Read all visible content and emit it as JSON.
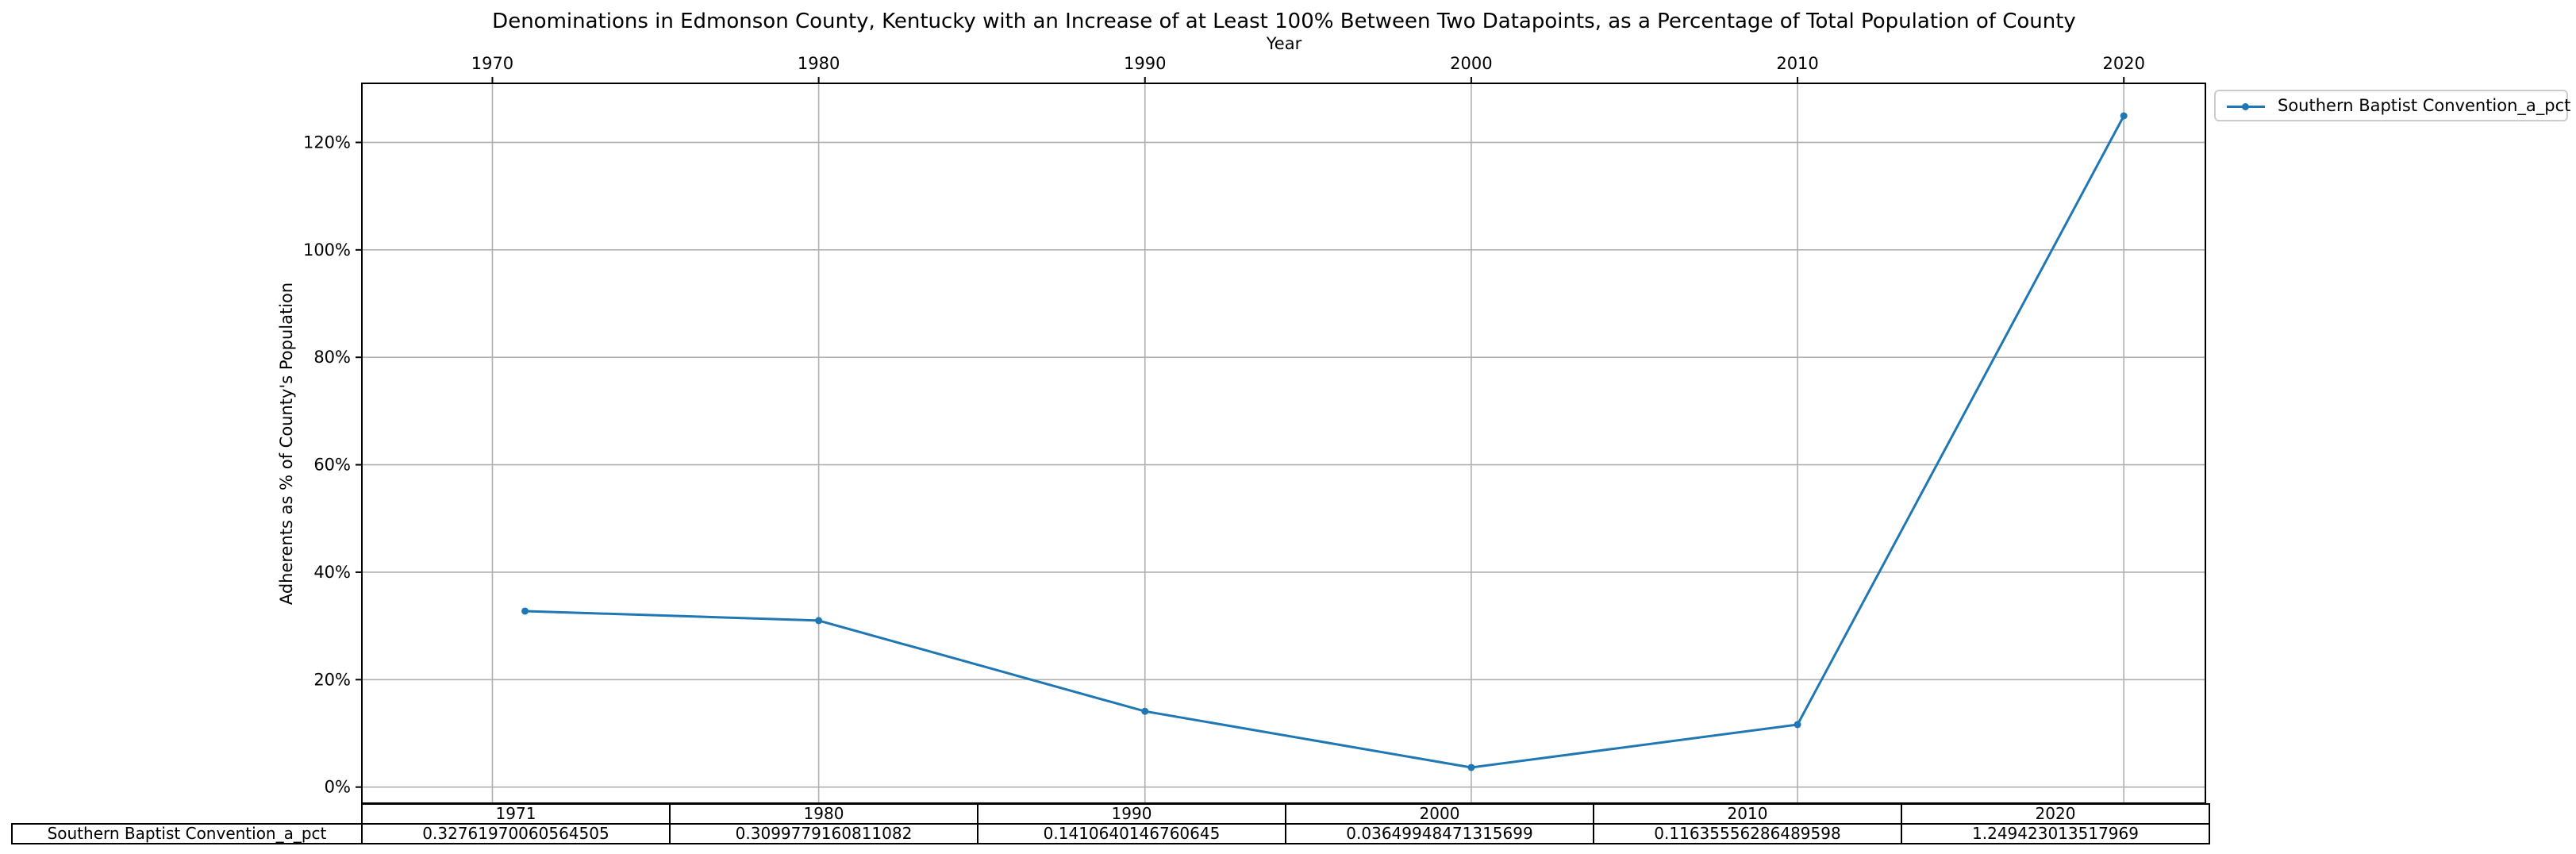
{
  "chart_data": {
    "type": "line",
    "title": "Denominations in Edmonson County, Kentucky with an Increase of at Least 100% Between Two Datapoints, as a Percentage of Total Population of County",
    "xlabel": "Year",
    "ylabel": "Adherents as % of County's Population",
    "x_ticks": [
      1970,
      1980,
      1990,
      2000,
      2010,
      2020
    ],
    "y_ticks": [
      0,
      20,
      40,
      60,
      80,
      100,
      120
    ],
    "y_tick_suffix": "%",
    "xlim": [
      1966,
      2022.5
    ],
    "ylim": [
      -3,
      131
    ],
    "x": [
      1971,
      1980,
      1990,
      2000,
      2010,
      2020
    ],
    "series": [
      {
        "name": "Southern Baptist Convention_a_pct",
        "values": [
          32.76197006056451,
          30.99779160811082,
          14.10640146760645,
          3.649948471315699,
          11.635556286489598,
          124.9423013517969
        ],
        "color": "#1f77b4"
      }
    ],
    "grid": true,
    "legend_position": "outside-top-right",
    "table": {
      "columns": [
        "1971",
        "1980",
        "1990",
        "2000",
        "2010",
        "2020"
      ],
      "row_label": "Southern Baptist Convention_a_pct",
      "cells": [
        "0.32761970060564505",
        "0.3099779160811082",
        "0.1410640146760645",
        "0.03649948471315699",
        "0.11635556286489598",
        "1.249423013517969"
      ]
    }
  }
}
